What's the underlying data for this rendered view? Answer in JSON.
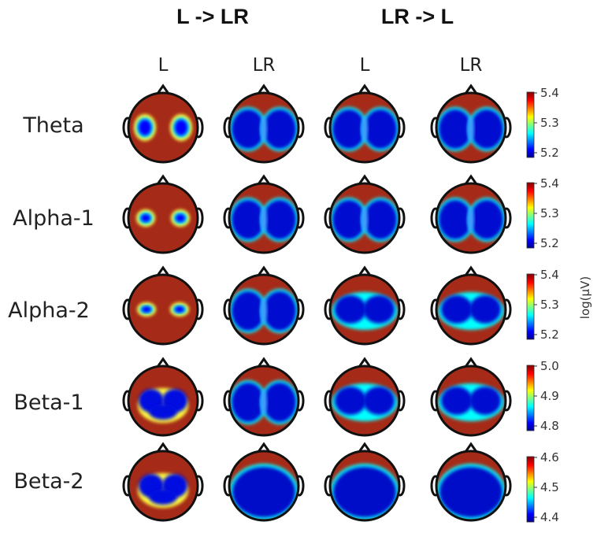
{
  "conditions": [
    {
      "title": "L -> LR",
      "columns": [
        "L",
        "LR"
      ]
    },
    {
      "title": "LR -> L",
      "columns": [
        "L",
        "LR"
      ]
    }
  ],
  "bands": [
    {
      "name": "Theta",
      "scale": [
        "5.4",
        "5.3",
        "5.2"
      ],
      "maps": [
        "two-spots",
        "wide-dark",
        "wide-dark",
        "wide-dark"
      ]
    },
    {
      "name": "Alpha-1",
      "scale": [
        "5.4",
        "5.3",
        "5.2"
      ],
      "maps": [
        "small-spots",
        "wide-dark",
        "wide-dark",
        "wide-dark"
      ]
    },
    {
      "name": "Alpha-2",
      "scale": [
        "5.4",
        "5.3",
        "5.2"
      ],
      "maps": [
        "tiny-spots",
        "wide-dark",
        "band",
        "band"
      ]
    },
    {
      "name": "Beta-1",
      "scale": [
        "5.0",
        "4.9",
        "4.8"
      ],
      "maps": [
        "butterfly",
        "wide-dark",
        "band",
        "band"
      ]
    },
    {
      "name": "Beta-2",
      "scale": [
        "4.6",
        "4.5",
        "4.4"
      ],
      "maps": [
        "butterfly",
        "full-dark",
        "full-dark",
        "full-dark"
      ]
    }
  ],
  "colorbar_unit": "log(μV)",
  "colormap": [
    "#00008f",
    "#0000ff",
    "#0080ff",
    "#00ffff",
    "#80ff80",
    "#ffff00",
    "#ff8000",
    "#ff0000",
    "#800000"
  ],
  "scalp_background": "#a52a18"
}
